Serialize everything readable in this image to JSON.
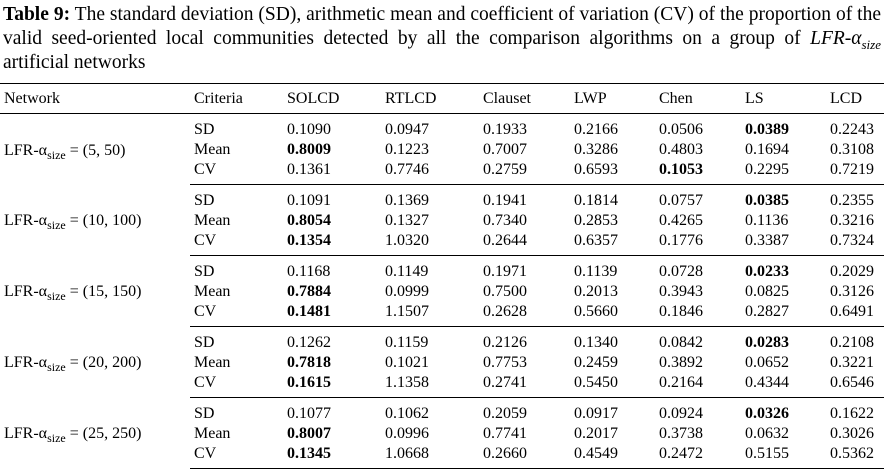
{
  "caption": {
    "label": "Table 9:",
    "text_before": " The standard deviation (SD), arithmetic mean and coefficient of variation (CV) of the proportion of the valid seed-oriented local communities detected by all the comparison algorithms on a group of ",
    "italic_main": "LFR-α",
    "italic_sub": "size",
    "text_after": " artificial networks"
  },
  "headers": [
    "Network",
    "Criteria",
    "SOLCD",
    "RTLCD",
    "Clauset",
    "LWP",
    "Chen",
    "LS",
    "LCD"
  ],
  "criteria": [
    "SD",
    "Mean",
    "CV"
  ],
  "groups": [
    {
      "prefix": "LFR-α",
      "sub": "size",
      "params": " = (5, 50)",
      "rows": [
        [
          "0.1090",
          "0.0947",
          "0.1933",
          "0.2166",
          "0.0506",
          "0.0389",
          "0.2243"
        ],
        [
          "0.8009",
          "0.1223",
          "0.7007",
          "0.3286",
          "0.4803",
          "0.1694",
          "0.3108"
        ],
        [
          "0.1361",
          "0.7746",
          "0.2759",
          "0.6593",
          "0.1053",
          "0.2295",
          "0.7219"
        ]
      ],
      "bold": [
        [
          5
        ],
        [
          0
        ],
        [
          4
        ]
      ]
    },
    {
      "prefix": "LFR-α",
      "sub": "size",
      "params": " = (10, 100)",
      "rows": [
        [
          "0.1091",
          "0.1369",
          "0.1941",
          "0.1814",
          "0.0757",
          "0.0385",
          "0.2355"
        ],
        [
          "0.8054",
          "0.1327",
          "0.7340",
          "0.2853",
          "0.4265",
          "0.1136",
          "0.3216"
        ],
        [
          "0.1354",
          "1.0320",
          "0.2644",
          "0.6357",
          "0.1776",
          "0.3387",
          "0.7324"
        ]
      ],
      "bold": [
        [
          5
        ],
        [
          0
        ],
        [
          0
        ]
      ]
    },
    {
      "prefix": "LFR-α",
      "sub": "size",
      "params": " = (15, 150)",
      "rows": [
        [
          "0.1168",
          "0.1149",
          "0.1971",
          "0.1139",
          "0.0728",
          "0.0233",
          "0.2029"
        ],
        [
          "0.7884",
          "0.0999",
          "0.7500",
          "0.2013",
          "0.3943",
          "0.0825",
          "0.3126"
        ],
        [
          "0.1481",
          "1.1507",
          "0.2628",
          "0.5660",
          "0.1846",
          "0.2827",
          "0.6491"
        ]
      ],
      "bold": [
        [
          5
        ],
        [
          0
        ],
        [
          0
        ]
      ]
    },
    {
      "prefix": "LFR-α",
      "sub": "size",
      "params": " = (20, 200)",
      "rows": [
        [
          "0.1262",
          "0.1159",
          "0.2126",
          "0.1340",
          "0.0842",
          "0.0283",
          "0.2108"
        ],
        [
          "0.7818",
          "0.1021",
          "0.7753",
          "0.2459",
          "0.3892",
          "0.0652",
          "0.3221"
        ],
        [
          "0.1615",
          "1.1358",
          "0.2741",
          "0.5450",
          "0.2164",
          "0.4344",
          "0.6546"
        ]
      ],
      "bold": [
        [
          5
        ],
        [
          0
        ],
        [
          0
        ]
      ]
    },
    {
      "prefix": "LFR-α",
      "sub": "size",
      "params": " = (25, 250)",
      "rows": [
        [
          "0.1077",
          "0.1062",
          "0.2059",
          "0.0917",
          "0.0924",
          "0.0326",
          "0.1622"
        ],
        [
          "0.8007",
          "0.0996",
          "0.7741",
          "0.2017",
          "0.3738",
          "0.0632",
          "0.3026"
        ],
        [
          "0.1345",
          "1.0668",
          "0.2660",
          "0.4549",
          "0.2472",
          "0.5155",
          "0.5362"
        ]
      ],
      "bold": [
        [
          5
        ],
        [
          0
        ],
        [
          0
        ]
      ]
    }
  ]
}
